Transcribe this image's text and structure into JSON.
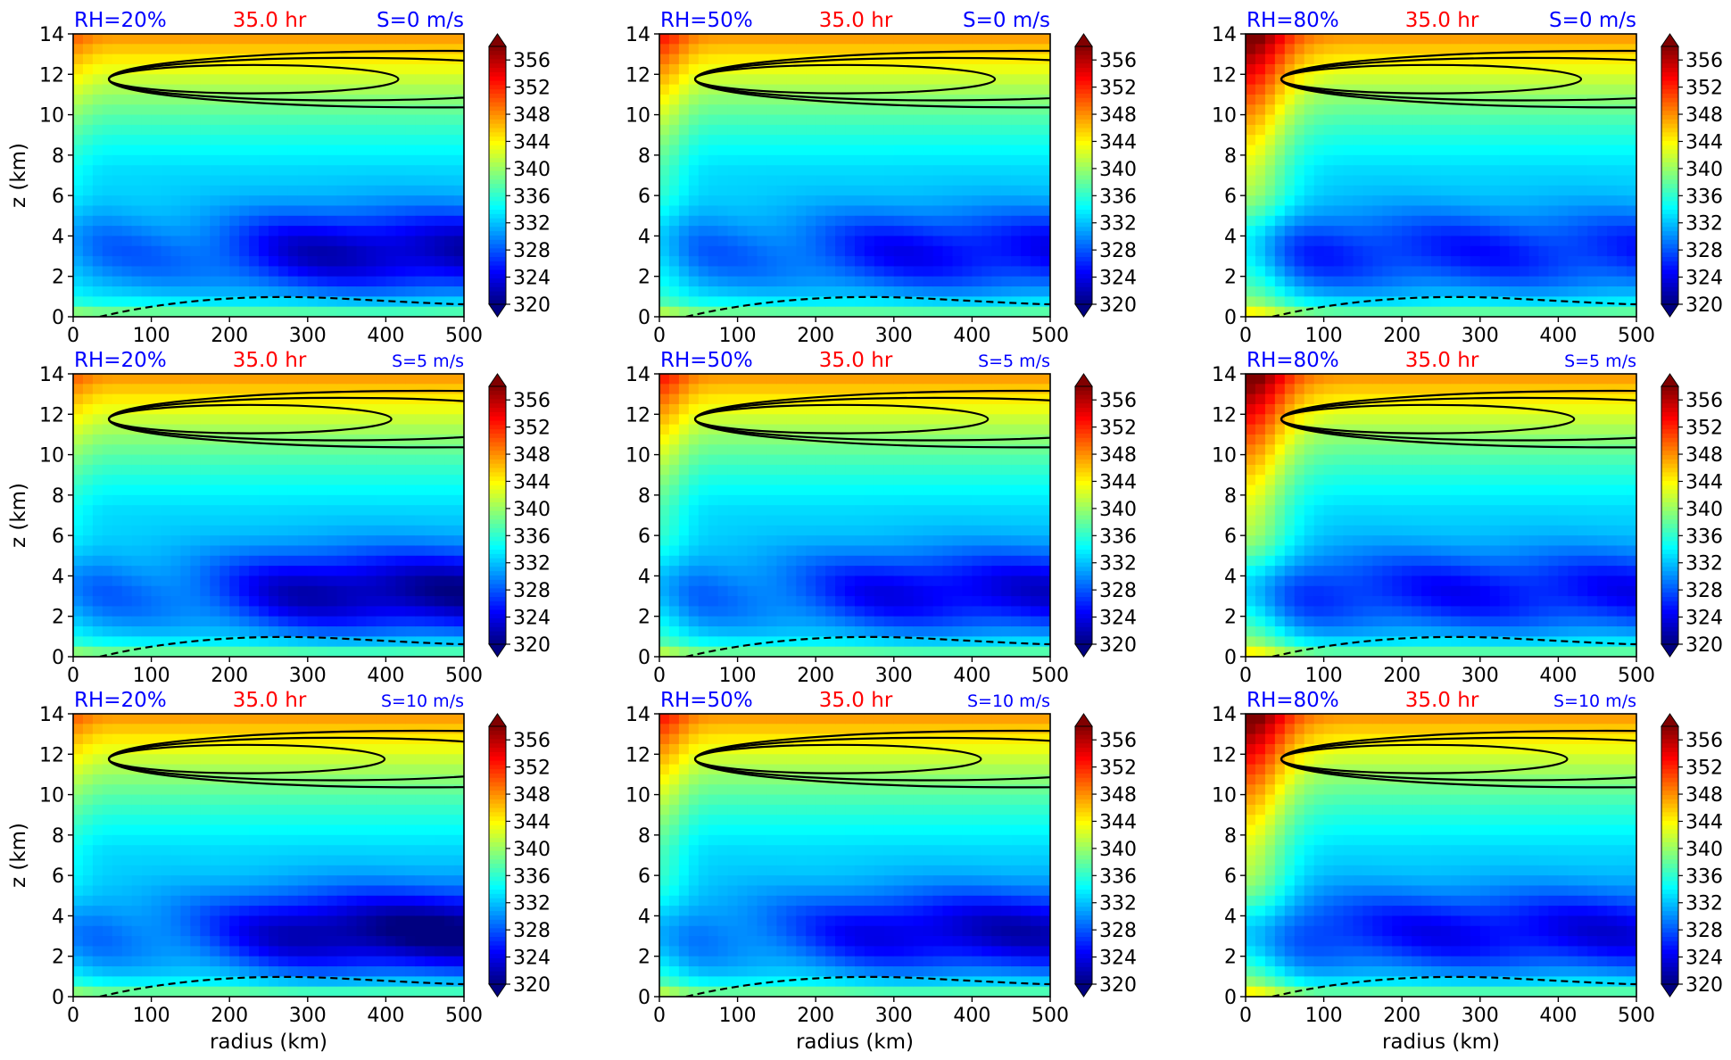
{
  "figure": {
    "colorbar_ticks": [
      320,
      324,
      328,
      332,
      336,
      340,
      344,
      348,
      352,
      356
    ],
    "colorbar_range": [
      320,
      358
    ],
    "x_ticks": [
      0,
      100,
      200,
      300,
      400,
      500
    ],
    "y_ticks": [
      0,
      2,
      4,
      6,
      8,
      10,
      12,
      14
    ],
    "title_color_left": "#0000ff",
    "title_color_center": "#ff0000",
    "title_color_right": "#0000ff"
  },
  "chart_data": [
    {
      "type": "heatmap",
      "rh": "RH=20%",
      "time": "35.0 hr",
      "shear": "S=0 m/s",
      "xlabel": "",
      "ylabel": "z (km)",
      "xlim": [
        0,
        500
      ],
      "ylim": [
        0,
        14
      ]
    },
    {
      "type": "heatmap",
      "rh": "RH=50%",
      "time": "35.0 hr",
      "shear": "S=0 m/s",
      "xlabel": "",
      "ylabel": "",
      "xlim": [
        0,
        500
      ],
      "ylim": [
        0,
        14
      ]
    },
    {
      "type": "heatmap",
      "rh": "RH=80%",
      "time": "35.0 hr",
      "shear": "S=0 m/s",
      "xlabel": "",
      "ylabel": "",
      "xlim": [
        0,
        500
      ],
      "ylim": [
        0,
        14
      ]
    },
    {
      "type": "heatmap",
      "rh": "RH=20%",
      "time": "35.0 hr",
      "shear": "S=5 m/s",
      "xlabel": "",
      "ylabel": "z (km)",
      "xlim": [
        0,
        500
      ],
      "ylim": [
        0,
        14
      ]
    },
    {
      "type": "heatmap",
      "rh": "RH=50%",
      "time": "35.0 hr",
      "shear": "S=5 m/s",
      "xlabel": "",
      "ylabel": "",
      "xlim": [
        0,
        500
      ],
      "ylim": [
        0,
        14
      ]
    },
    {
      "type": "heatmap",
      "rh": "RH=80%",
      "time": "35.0 hr",
      "shear": "S=5 m/s",
      "xlabel": "",
      "ylabel": "",
      "xlim": [
        0,
        500
      ],
      "ylim": [
        0,
        14
      ]
    },
    {
      "type": "heatmap",
      "rh": "RH=20%",
      "time": "35.0 hr",
      "shear": "S=10 m/s",
      "xlabel": "radius (km)",
      "ylabel": "z (km)",
      "xlim": [
        0,
        500
      ],
      "ylim": [
        0,
        14
      ]
    },
    {
      "type": "heatmap",
      "rh": "RH=50%",
      "time": "35.0 hr",
      "shear": "S=10 m/s",
      "xlabel": "radius (km)",
      "ylabel": "",
      "xlim": [
        0,
        500
      ],
      "ylim": [
        0,
        14
      ]
    },
    {
      "type": "heatmap",
      "rh": "RH=80%",
      "time": "35.0 hr",
      "shear": "S=10 m/s",
      "xlabel": "radius (km)",
      "ylabel": "",
      "xlim": [
        0,
        500
      ],
      "ylim": [
        0,
        14
      ]
    }
  ]
}
